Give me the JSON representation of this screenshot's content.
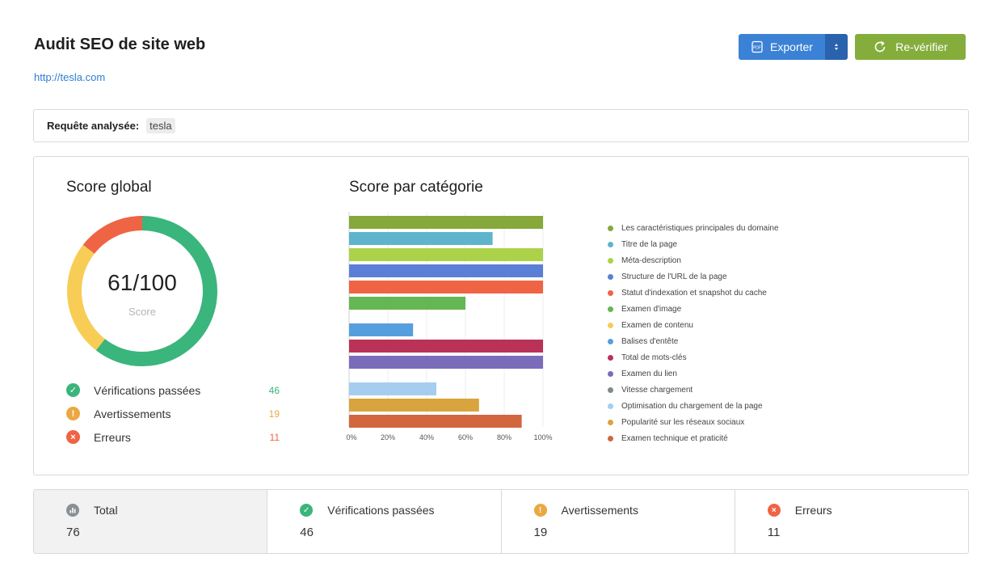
{
  "header": {
    "title": "Audit SEO de site web",
    "url": "http://tesla.com",
    "export_label": "Exporter",
    "export_icon": "pdf-icon",
    "export_toggle_icon": "up-down-arrows-icon",
    "recheck_label": "Re-vérifier",
    "recheck_icon": "refresh-icon"
  },
  "query": {
    "label": "Requête analysée:",
    "value": "tesla"
  },
  "global_score": {
    "title": "Score global",
    "value_text": "61/100",
    "caption": "Score",
    "segments": [
      {
        "name": "passed",
        "value": 46,
        "color": "#3ab57c"
      },
      {
        "name": "warnings",
        "value": 19,
        "color": "#f8cd55"
      },
      {
        "name": "errors",
        "value": 11,
        "color": "#ef6445"
      }
    ]
  },
  "summary": [
    {
      "label": "Vérifications passées",
      "value": "46",
      "icon": "check-icon",
      "color": "#3ab57c"
    },
    {
      "label": "Avertissements",
      "value": "19",
      "icon": "exclamation-icon",
      "color": "#eba842"
    },
    {
      "label": "Erreurs",
      "value": "11",
      "icon": "cross-icon",
      "color": "#ef6445"
    }
  ],
  "category_score": {
    "title": "Score par catégorie"
  },
  "chart_data": {
    "type": "bar",
    "orientation": "horizontal",
    "xlim": [
      0,
      100
    ],
    "x_ticks": [
      "0%",
      "20%",
      "40%",
      "60%",
      "80%",
      "100%"
    ],
    "grid": true,
    "legend_position": "right",
    "categories": [
      "Les caractéristiques principales du domaine",
      "Titre de la page",
      "Méta-description",
      "Structure de l'URL de la page",
      "Statut d'indexation et snapshot du cache",
      "Examen d'image",
      "Examen de contenu",
      "Balises d'entête",
      "Total de mots-clés",
      "Examen du lien",
      "Vitesse chargement",
      "Optimisation du chargement de la page",
      "Popularité sur les réseaux sociaux",
      "Examen technique et praticité"
    ],
    "values": [
      100,
      74,
      100,
      100,
      100,
      60,
      0,
      33,
      100,
      100,
      0,
      45,
      67,
      89
    ],
    "colors": [
      "#87a83a",
      "#5fb4cc",
      "#acd24a",
      "#5b7fd6",
      "#ef6445",
      "#65b753",
      "#f8cd55",
      "#569fde",
      "#ba3257",
      "#7a6cbb",
      "#7f8a8a",
      "#a5cdf0",
      "#d9a43d",
      "#d1663f"
    ]
  },
  "stats": [
    {
      "label": "Total",
      "value": "76",
      "icon": "bar-chart-icon",
      "color": "#8a8f94"
    },
    {
      "label": "Vérifications passées",
      "value": "46",
      "icon": "check-icon",
      "color": "#3ab57c"
    },
    {
      "label": "Avertissements",
      "value": "19",
      "icon": "exclamation-icon",
      "color": "#eba842"
    },
    {
      "label": "Erreurs",
      "value": "11",
      "icon": "cross-icon",
      "color": "#ef6445"
    }
  ]
}
